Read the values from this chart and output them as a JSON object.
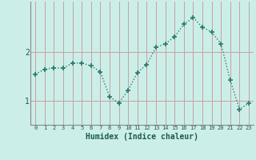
{
  "x": [
    0,
    1,
    2,
    3,
    4,
    5,
    6,
    7,
    8,
    9,
    10,
    11,
    12,
    13,
    14,
    15,
    16,
    17,
    18,
    19,
    20,
    21,
    22,
    23
  ],
  "y": [
    1.55,
    1.65,
    1.68,
    1.67,
    1.78,
    1.78,
    1.72,
    1.6,
    1.08,
    0.95,
    1.22,
    1.58,
    1.75,
    2.1,
    2.18,
    2.32,
    2.58,
    2.72,
    2.52,
    2.42,
    2.18,
    1.42,
    0.82,
    0.95
  ],
  "line_color": "#2a7a6e",
  "marker": "+",
  "markersize": 4,
  "markeredgewidth": 1.2,
  "linewidth": 1.0,
  "xlabel": "Humidex (Indice chaleur)",
  "xlabel_fontsize": 7,
  "yticks": [
    1,
    2
  ],
  "ylim": [
    0.5,
    3.05
  ],
  "xlim": [
    -0.5,
    23.5
  ],
  "xtick_labels": [
    "0",
    "1",
    "2",
    "3",
    "4",
    "5",
    "6",
    "7",
    "8",
    "9",
    "10",
    "11",
    "12",
    "13",
    "14",
    "15",
    "16",
    "17",
    "18",
    "19",
    "20",
    "21",
    "22",
    "23"
  ],
  "grid_color": "#c8a0a0",
  "bg_color": "#cceee8",
  "spine_color": "#888888"
}
